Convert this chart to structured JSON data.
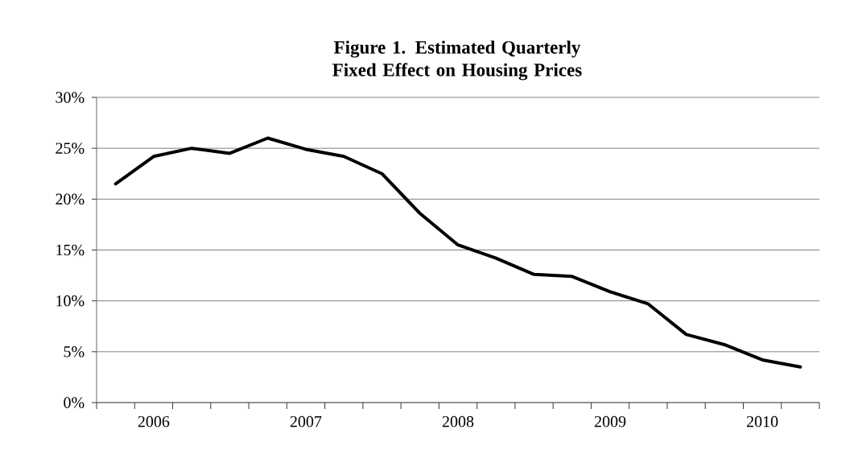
{
  "chart_data": {
    "type": "line",
    "title": "Figure 1. Estimated Quarterly Fixed Effect on Housing Prices",
    "categories": [
      null,
      "2006",
      null,
      null,
      null,
      "2007",
      null,
      null,
      null,
      "2008",
      null,
      null,
      null,
      "2009",
      null,
      null,
      null,
      "2010",
      null
    ],
    "series": [
      {
        "color": "#000000",
        "values": [
          21.5,
          24.2,
          25.0,
          24.5,
          26.0,
          24.9,
          24.2,
          22.5,
          18.6,
          15.5,
          14.2,
          12.6,
          12.4,
          10.9,
          9.7,
          6.7,
          5.7,
          4.2,
          3.5
        ]
      }
    ],
    "ylim": [
      0,
      30
    ],
    "yticks": [
      {
        "value": 0,
        "label": "0%"
      },
      {
        "value": 5,
        "label": "5%"
      },
      {
        "value": 10,
        "label": "10%"
      },
      {
        "value": 15,
        "label": "15%"
      },
      {
        "value": 20,
        "label": "20%"
      },
      {
        "value": 25,
        "label": "25%"
      },
      {
        "value": 30,
        "label": "30%"
      }
    ],
    "grid": "y",
    "marker": "none",
    "line_style": "solid"
  }
}
